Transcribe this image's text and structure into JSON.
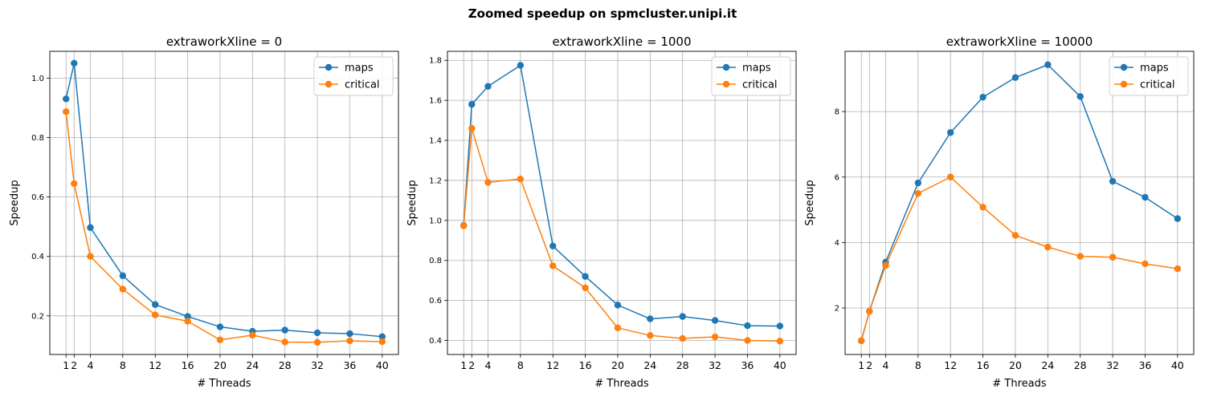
{
  "suptitle": "Zoomed speedup on spmcluster.unipi.it",
  "colors": {
    "maps": "#1f77b4",
    "critical": "#ff7f0e"
  },
  "chart_data": [
    {
      "type": "line",
      "title": "extraworkXline = 0",
      "xlabel": "# Threads",
      "ylabel": "Speedup",
      "x": [
        1,
        2,
        4,
        8,
        12,
        16,
        20,
        24,
        28,
        32,
        36,
        40
      ],
      "xticks": [
        1,
        2,
        4,
        8,
        12,
        16,
        20,
        24,
        28,
        32,
        36,
        40
      ],
      "xlim": [
        -1.0,
        42.0
      ],
      "ylim": [
        0.07,
        1.09
      ],
      "yticks": [
        0.2,
        0.4,
        0.6,
        0.8,
        1.0
      ],
      "ytick_labels": [
        "0.2",
        "0.4",
        "0.6",
        "0.8",
        "1.0"
      ],
      "grid": true,
      "legend": "top-right",
      "series": [
        {
          "name": "maps",
          "values": [
            0.93,
            1.05,
            0.497,
            0.335,
            0.238,
            0.198,
            0.163,
            0.148,
            0.152,
            0.143,
            0.14,
            0.13
          ]
        },
        {
          "name": "critical",
          "values": [
            0.887,
            0.645,
            0.4,
            0.29,
            0.203,
            0.182,
            0.119,
            0.135,
            0.112,
            0.111,
            0.116,
            0.113
          ]
        }
      ]
    },
    {
      "type": "line",
      "title": "extraworkXline = 1000",
      "xlabel": "# Threads",
      "ylabel": "Speedup",
      "x": [
        1,
        2,
        4,
        8,
        12,
        16,
        20,
        24,
        28,
        32,
        36,
        40
      ],
      "xticks": [
        1,
        2,
        4,
        8,
        12,
        16,
        20,
        24,
        28,
        32,
        36,
        40
      ],
      "xlim": [
        -1.0,
        42.0
      ],
      "ylim": [
        0.33,
        1.845
      ],
      "yticks": [
        0.4,
        0.6,
        0.8,
        1.0,
        1.2,
        1.4,
        1.6,
        1.8
      ],
      "ytick_labels": [
        "0.4",
        "0.6",
        "0.8",
        "1.0",
        "1.2",
        "1.4",
        "1.6",
        "1.8"
      ],
      "grid": true,
      "legend": "top-right",
      "series": [
        {
          "name": "maps",
          "values": [
            0.975,
            1.58,
            1.67,
            1.775,
            0.872,
            0.72,
            0.577,
            0.508,
            0.52,
            0.5,
            0.474,
            0.472
          ]
        },
        {
          "name": "critical",
          "values": [
            0.973,
            1.46,
            1.19,
            1.207,
            0.773,
            0.663,
            0.463,
            0.425,
            0.41,
            0.418,
            0.4,
            0.397
          ]
        }
      ]
    },
    {
      "type": "line",
      "title": "extraworkXline = 10000",
      "xlabel": "# Threads",
      "ylabel": "Speedup",
      "x": [
        1,
        2,
        4,
        8,
        12,
        16,
        20,
        24,
        28,
        32,
        36,
        40
      ],
      "xticks": [
        1,
        2,
        4,
        8,
        12,
        16,
        20,
        24,
        28,
        32,
        36,
        40
      ],
      "xlim": [
        -1.0,
        42.0
      ],
      "ylim": [
        0.58,
        9.84
      ],
      "yticks": [
        2,
        4,
        6,
        8
      ],
      "ytick_labels": [
        "2",
        "4",
        "6",
        "8"
      ],
      "grid": true,
      "legend": "top-right",
      "series": [
        {
          "name": "maps",
          "values": [
            1.0,
            1.9,
            3.4,
            5.82,
            7.36,
            8.44,
            9.04,
            9.43,
            8.46,
            5.87,
            5.38,
            4.73
          ]
        },
        {
          "name": "critical",
          "values": [
            1.0,
            1.9,
            3.3,
            5.5,
            6.0,
            5.08,
            4.22,
            3.86,
            3.58,
            3.55,
            3.35,
            3.2
          ]
        }
      ]
    }
  ]
}
